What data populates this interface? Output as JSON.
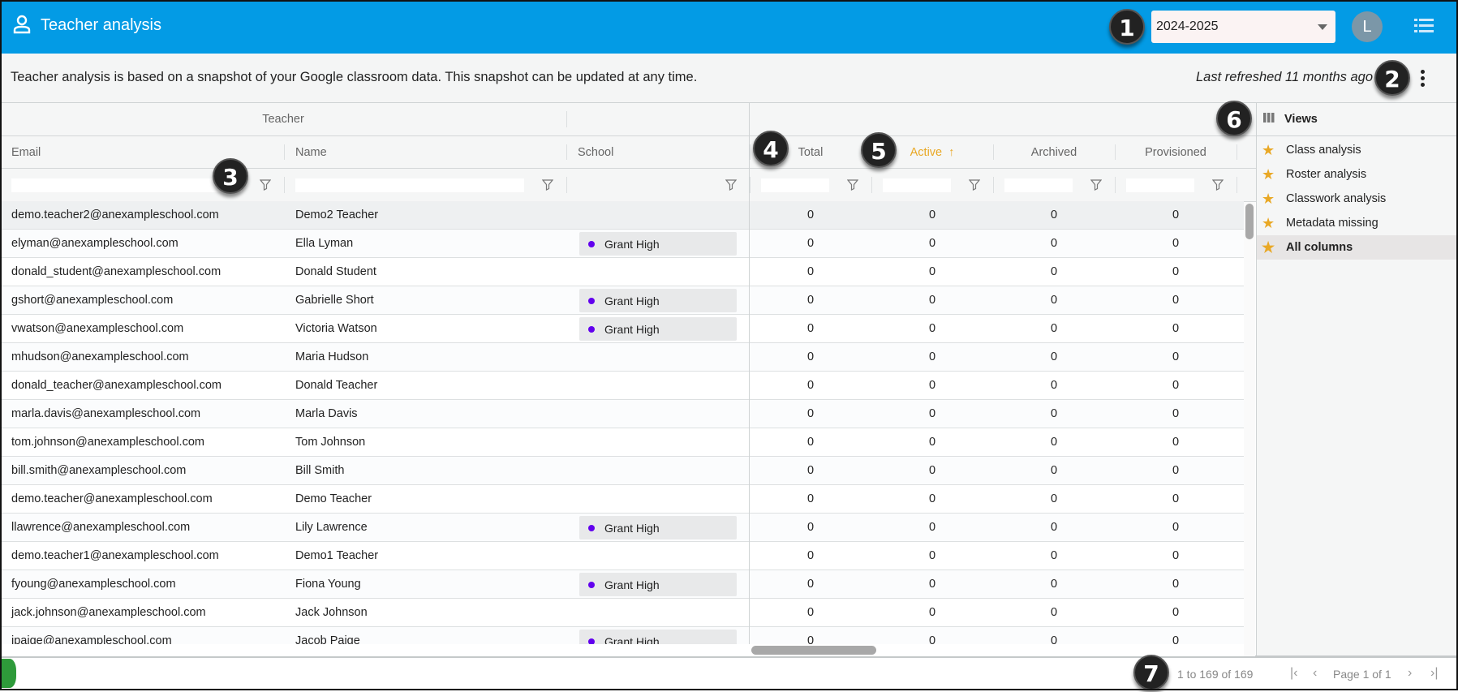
{
  "header": {
    "title": "Teacher analysis",
    "icon": "person-icon",
    "year_select": "2024-2025",
    "avatar_letter": "L",
    "menu_icon": "list-menu-icon",
    "accent": "#039be5"
  },
  "info": {
    "description": "Teacher analysis is based on a snapshot of your Google classroom data. This snapshot can be updated at any time.",
    "refreshed": "Last refreshed 11 months ago"
  },
  "grid": {
    "group_header": "Teacher",
    "columns": [
      "Email",
      "Name",
      "School",
      "Total",
      "Active",
      "Archived",
      "Provisioned"
    ],
    "sorted_column": "Active",
    "sort_direction": "ascending",
    "sort_color": "#e9a825",
    "rows": [
      [
        "demo.teacher2@anexampleschool.com",
        "Demo2 Teacher",
        "",
        "0",
        "0",
        "0",
        "0"
      ],
      [
        "elyman@anexampleschool.com",
        "Ella Lyman",
        "Grant High",
        "0",
        "0",
        "0",
        "0"
      ],
      [
        "donald_student@anexampleschool.com",
        "Donald Student",
        "",
        "0",
        "0",
        "0",
        "0"
      ],
      [
        "gshort@anexampleschool.com",
        "Gabrielle Short",
        "Grant High",
        "0",
        "0",
        "0",
        "0"
      ],
      [
        "vwatson@anexampleschool.com",
        "Victoria Watson",
        "Grant High",
        "0",
        "0",
        "0",
        "0"
      ],
      [
        "mhudson@anexampleschool.com",
        "Maria Hudson",
        "",
        "0",
        "0",
        "0",
        "0"
      ],
      [
        "donald_teacher@anexampleschool.com",
        "Donald Teacher",
        "",
        "0",
        "0",
        "0",
        "0"
      ],
      [
        "marla.davis@anexampleschool.com",
        "Marla Davis",
        "",
        "0",
        "0",
        "0",
        "0"
      ],
      [
        "tom.johnson@anexampleschool.com",
        "Tom Johnson",
        "",
        "0",
        "0",
        "0",
        "0"
      ],
      [
        "bill.smith@anexampleschool.com",
        "Bill Smith",
        "",
        "0",
        "0",
        "0",
        "0"
      ],
      [
        "demo.teacher@anexampleschool.com",
        "Demo Teacher",
        "",
        "0",
        "0",
        "0",
        "0"
      ],
      [
        "llawrence@anexampleschool.com",
        "Lily Lawrence",
        "Grant High",
        "0",
        "0",
        "0",
        "0"
      ],
      [
        "demo.teacher1@anexampleschool.com",
        "Demo1 Teacher",
        "",
        "0",
        "0",
        "0",
        "0"
      ],
      [
        "fyoung@anexampleschool.com",
        "Fiona Young",
        "Grant High",
        "0",
        "0",
        "0",
        "0"
      ],
      [
        "jack.johnson@anexampleschool.com",
        "Jack Johnson",
        "",
        "0",
        "0",
        "0",
        "0"
      ],
      [
        "jpaige@anexampleschool.com",
        "Jacob Paige",
        "Grant High",
        "0",
        "0",
        "0",
        "0"
      ]
    ],
    "school_dot_color": "#6200ee"
  },
  "views": {
    "title": "Views",
    "items": [
      "Class analysis",
      "Roster analysis",
      "Classwork analysis",
      "Metadata missing",
      "All columns"
    ],
    "active": "All columns"
  },
  "footer": {
    "count": "1 to 169 of 169",
    "page": "Page 1 of 1"
  },
  "badges": [
    "1",
    "2",
    "3",
    "4",
    "5",
    "6",
    "7"
  ]
}
